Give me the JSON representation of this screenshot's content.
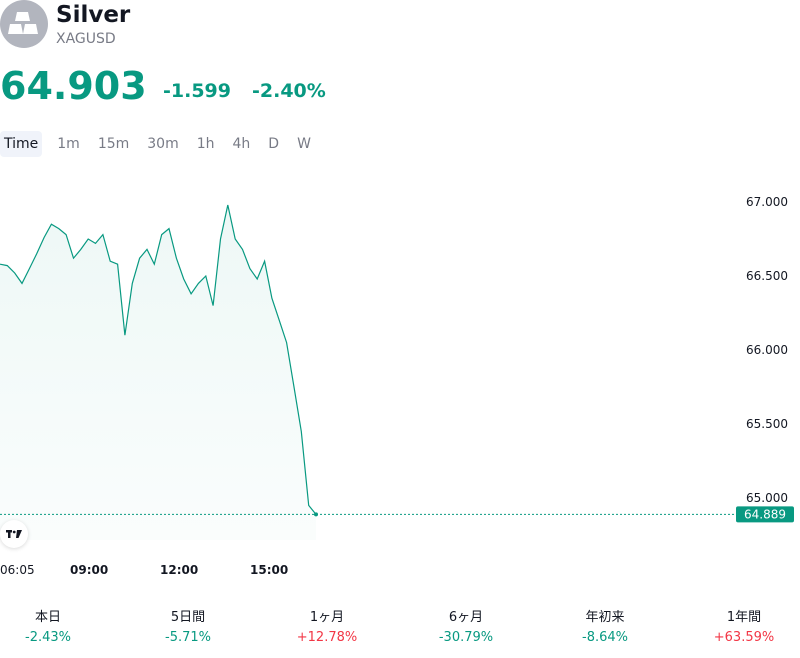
{
  "header": {
    "name": "Silver",
    "symbol": "XAGUSD",
    "price": "64.903",
    "change": "-1.599",
    "change_pct": "-2.40%"
  },
  "tabs": [
    {
      "label": "Time",
      "active": true
    },
    {
      "label": "1m"
    },
    {
      "label": "15m"
    },
    {
      "label": "30m"
    },
    {
      "label": "1h"
    },
    {
      "label": "4h"
    },
    {
      "label": "D"
    },
    {
      "label": "W"
    }
  ],
  "chart_data": {
    "type": "area",
    "ylim": [
      64.5,
      67.2
    ],
    "y_ticks": [
      "67.000",
      "66.500",
      "66.000",
      "65.500",
      "65.000"
    ],
    "x_ticks": [
      {
        "label": "06:05",
        "bold": false
      },
      {
        "label": "09:00",
        "bold": true
      },
      {
        "label": "12:00",
        "bold": true
      },
      {
        "label": "15:00",
        "bold": true
      }
    ],
    "last_value_label": "64.889",
    "last_value": 64.889,
    "grid": false,
    "line_color": "#089981",
    "series": [
      {
        "x": [
          "06:05",
          "06:30",
          "07:00",
          "07:30",
          "07:45",
          "08:00",
          "08:15",
          "08:30",
          "08:45",
          "09:00",
          "09:15",
          "09:30",
          "09:45",
          "10:00",
          "10:15",
          "10:30",
          "10:45",
          "11:00",
          "11:10",
          "11:15",
          "11:30",
          "11:45",
          "12:00",
          "12:15",
          "12:30",
          "12:45",
          "13:00",
          "13:15",
          "13:30",
          "13:45",
          "14:00",
          "14:05",
          "14:15",
          "14:30",
          "14:45",
          "15:00",
          "15:15",
          "15:20",
          "15:30",
          "15:35",
          "15:40",
          "15:45",
          "15:50",
          "16:00"
        ],
        "values": [
          66.58,
          66.57,
          66.52,
          66.45,
          66.55,
          66.65,
          66.76,
          66.85,
          66.82,
          66.78,
          66.62,
          66.68,
          66.75,
          66.72,
          66.78,
          66.6,
          66.58,
          66.1,
          66.45,
          66.62,
          66.68,
          66.58,
          66.78,
          66.82,
          66.62,
          66.48,
          66.38,
          66.45,
          66.5,
          66.3,
          66.75,
          66.98,
          66.75,
          66.68,
          66.55,
          66.48,
          66.6,
          66.35,
          66.2,
          66.05,
          65.75,
          65.45,
          64.95,
          64.889
        ]
      }
    ]
  },
  "performance": [
    {
      "label": "本日",
      "value": "-2.43%",
      "direction": "neg"
    },
    {
      "label": "5日間",
      "value": "-5.71%",
      "direction": "neg"
    },
    {
      "label": "1ヶ月",
      "value": "+12.78%",
      "direction": "pos"
    },
    {
      "label": "6ヶ月",
      "value": "-30.79%",
      "direction": "neg"
    },
    {
      "label": "年初来",
      "value": "-8.64%",
      "direction": "neg"
    },
    {
      "label": "1年間",
      "value": "+63.59%",
      "direction": "pos"
    }
  ],
  "icons": {
    "logo": "silver-bars-icon",
    "watermark": "tradingview-logo-icon"
  }
}
